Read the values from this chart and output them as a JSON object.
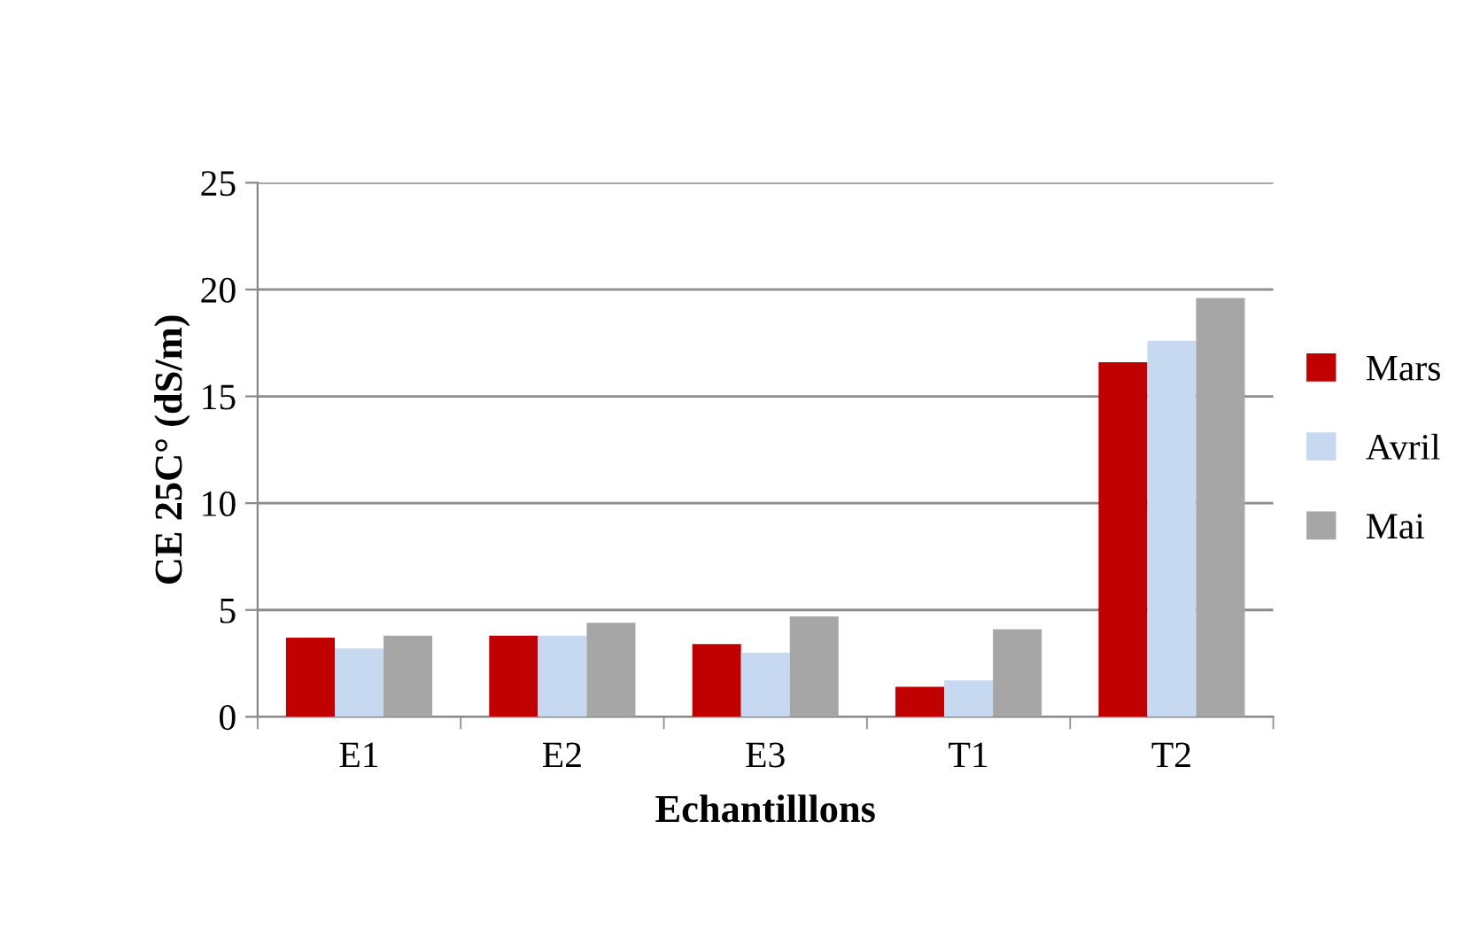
{
  "chart_data": {
    "type": "bar",
    "xlabel": "Echantilllons",
    "ylabel": "CE 25C° (dS/m)",
    "categories": [
      "E1",
      "E2",
      "E3",
      "T1",
      "T2"
    ],
    "series": [
      {
        "name": "Mars",
        "color": "#c00000",
        "values": [
          3.7,
          3.8,
          3.4,
          1.4,
          16.6
        ]
      },
      {
        "name": "Avril",
        "color": "#c6d9f1",
        "values": [
          3.2,
          3.8,
          3.0,
          1.7,
          17.6
        ]
      },
      {
        "name": "Mai",
        "color": "#a6a6a6",
        "values": [
          3.8,
          4.4,
          4.7,
          4.1,
          19.6
        ]
      }
    ],
    "ylim": [
      0,
      25
    ],
    "yticks": [
      0,
      5,
      10,
      15,
      20,
      25
    ],
    "grid": "y",
    "legend": "right"
  }
}
